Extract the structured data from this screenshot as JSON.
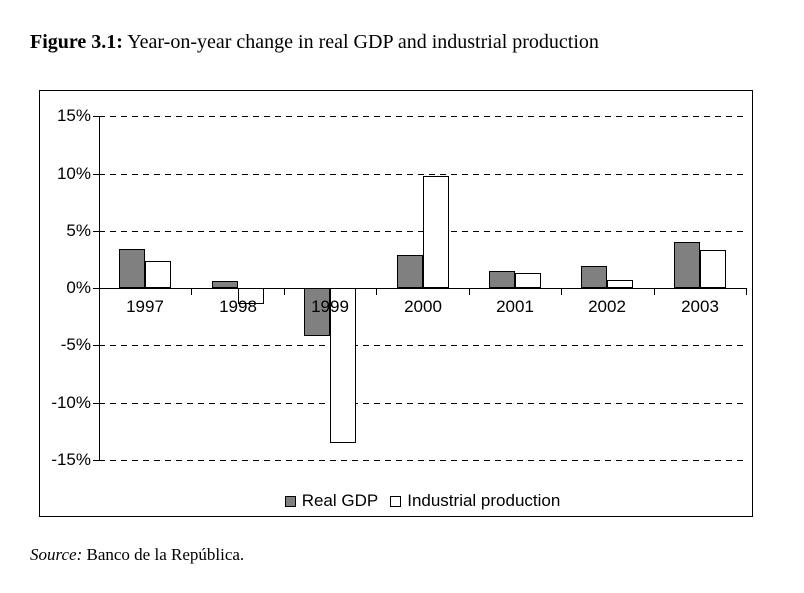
{
  "figure": {
    "label": "Figure 3.1:",
    "caption": " Year-on-year change in real GDP and industrial production"
  },
  "source": {
    "label": "Source:",
    "text": " Banco de la República."
  },
  "chart_data": {
    "type": "bar",
    "title": "Figure 3.1: Year-on-year change in real GDP and industrial production",
    "categories": [
      "1997",
      "1998",
      "1999",
      "2000",
      "2001",
      "2002",
      "2003"
    ],
    "series": [
      {
        "name": "Real GDP",
        "color": "#808080",
        "values": [
          3.4,
          0.6,
          -4.2,
          2.9,
          1.5,
          1.9,
          4.0
        ]
      },
      {
        "name": "Industrial production",
        "color": "#ffffff",
        "values": [
          2.4,
          -1.4,
          -13.5,
          9.8,
          1.3,
          0.7,
          3.3
        ]
      }
    ],
    "xlabel": "",
    "ylabel": "",
    "ylim": [
      -15,
      15
    ],
    "y_ticks": [
      15,
      10,
      5,
      0,
      -5,
      -10,
      -15
    ],
    "y_tick_suffix": "%",
    "grid": "horizontal-dashed",
    "legend_position": "bottom-center",
    "bar_border_color": "#000000",
    "axis_color": "#000000",
    "background_color": "#ffffff"
  }
}
